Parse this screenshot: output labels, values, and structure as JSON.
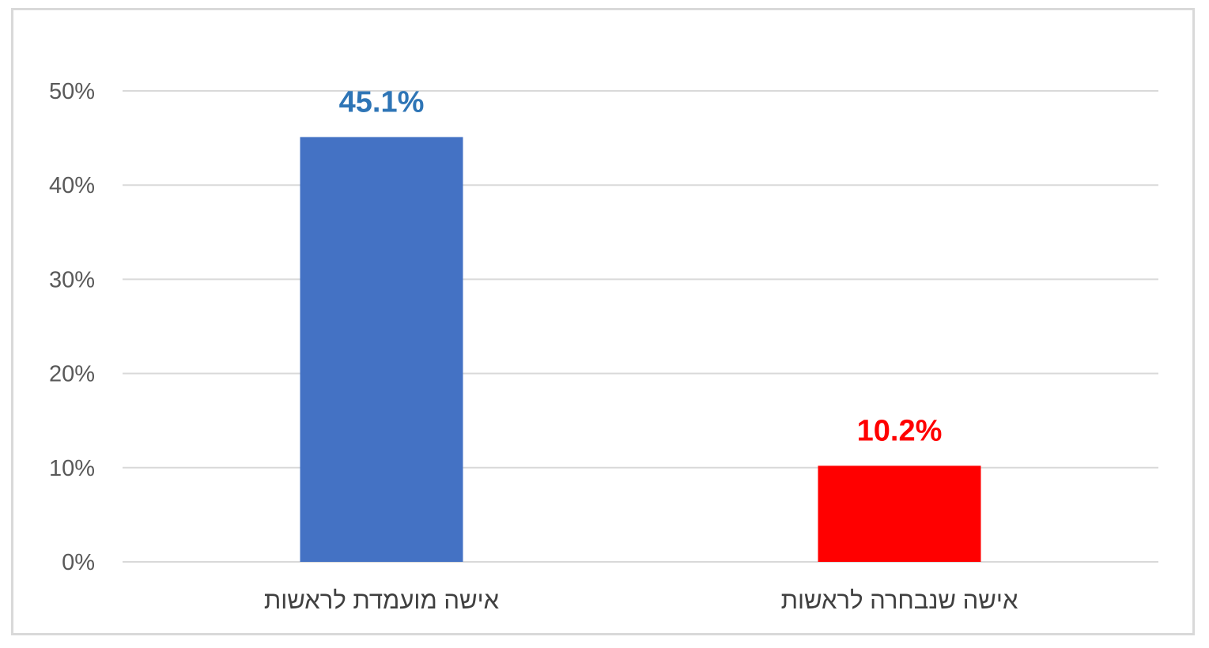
{
  "chart_data": {
    "type": "bar",
    "categories": [
      "אישה מועמדת לראשות",
      "אישה שנבחרה לראשות"
    ],
    "values": [
      45.1,
      10.2
    ],
    "data_labels": [
      "45.1%",
      "10.2%"
    ],
    "bar_colors": [
      "#4472c4",
      "#ff0000"
    ],
    "label_colors": [
      "#2e75b6",
      "#ff0000"
    ],
    "ylim": [
      0,
      50
    ],
    "yticks": [
      0,
      10,
      20,
      30,
      40,
      50
    ],
    "ytick_labels": [
      "0%",
      "10%",
      "20%",
      "30%",
      "40%",
      "50%"
    ],
    "grid": true,
    "legend": "none",
    "title": "",
    "xlabel": "",
    "ylabel": ""
  },
  "colors": {
    "gridline": "#d9d9d9",
    "frame": "#d9d9d9",
    "tick_text": "#595959",
    "category_text": "#404040"
  }
}
